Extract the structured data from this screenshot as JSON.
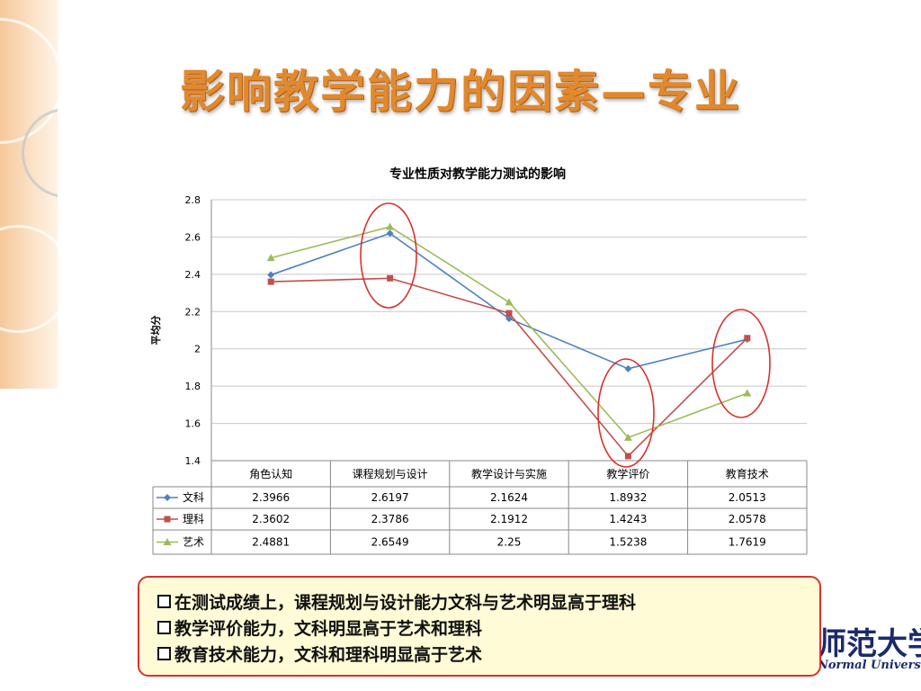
{
  "slide": {
    "title": "影响教学能力的因素—专业"
  },
  "chart_data": {
    "type": "line",
    "title": "专业性质对教学能力测试的影响",
    "ylabel": "平均分",
    "xlabel": "",
    "categories": [
      "角色认知",
      "课程规划与设计",
      "教学设计与实施",
      "教学评价",
      "教育技术"
    ],
    "ylim": [
      1.4,
      2.8
    ],
    "yticks": [
      1.4,
      1.6,
      1.8,
      2.0,
      2.2,
      2.4,
      2.6,
      2.8
    ],
    "ytick_labels": [
      "1.4",
      "1.6",
      "1.8",
      "2",
      "2.2",
      "2.4",
      "2.6",
      "2.8"
    ],
    "grid": true,
    "legend": "data-table",
    "series": [
      {
        "name": "文科",
        "color": "#4f81bd",
        "marker": "diamond",
        "values": [
          2.3966,
          2.6197,
          2.1624,
          1.8932,
          2.0513
        ],
        "labels": [
          "2.3966",
          "2.6197",
          "2.1624",
          "1.8932",
          "2.0513"
        ]
      },
      {
        "name": "理科",
        "color": "#c0504d",
        "marker": "square",
        "values": [
          2.3602,
          2.3786,
          2.1912,
          1.4243,
          2.0578
        ],
        "labels": [
          "2.3602",
          "2.3786",
          "2.1912",
          "1.4243",
          "2.0578"
        ]
      },
      {
        "name": "艺术",
        "color": "#9bbb59",
        "marker": "triangle",
        "values": [
          2.4881,
          2.6549,
          2.25,
          1.5238,
          1.7619
        ],
        "labels": [
          "2.4881",
          "2.6549",
          "2.25",
          "1.5238",
          "1.7619"
        ]
      }
    ],
    "annotations": {
      "highlight_ellipse_color": "#d9322b",
      "highlighted_categories": [
        1,
        3,
        4
      ]
    }
  },
  "bullets": [
    "在测试成绩上，课程规划与设计能力文科与艺术明显高于理科",
    "教学评价能力，文科明显高于艺术和理科",
    "教育技术能力，文科和理科明显高于艺术"
  ],
  "logo": {
    "main": "师范大学",
    "sub": "Normal University"
  }
}
